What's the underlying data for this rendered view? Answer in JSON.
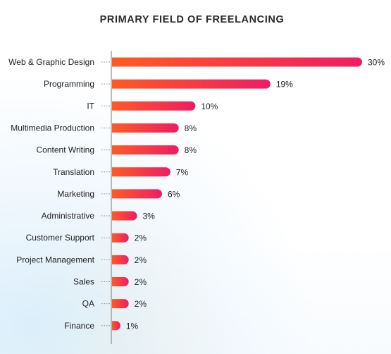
{
  "chart_data": {
    "type": "bar",
    "orientation": "horizontal",
    "title": "PRIMARY FIELD OF FREELANCING",
    "categories": [
      "Web & Graphic Design",
      "Programming",
      "IT",
      "Multimedia Production",
      "Content Writing",
      "Translation",
      "Marketing",
      "Administrative",
      "Customer Support",
      "Project Management",
      "Sales",
      "QA",
      "Finance"
    ],
    "values": [
      30,
      19,
      10,
      8,
      8,
      7,
      6,
      3,
      2,
      2,
      2,
      2,
      1
    ],
    "value_labels": [
      "30%",
      "19%",
      "10%",
      "8%",
      "8%",
      "7%",
      "6%",
      "3%",
      "2%",
      "2%",
      "2%",
      "2%",
      "1%"
    ],
    "xlim": [
      0,
      30
    ],
    "grid": false,
    "colors": {
      "bar_start": "#ff5a25",
      "bar_end": "#ee1d64",
      "axis": "#7a7a7a"
    }
  }
}
